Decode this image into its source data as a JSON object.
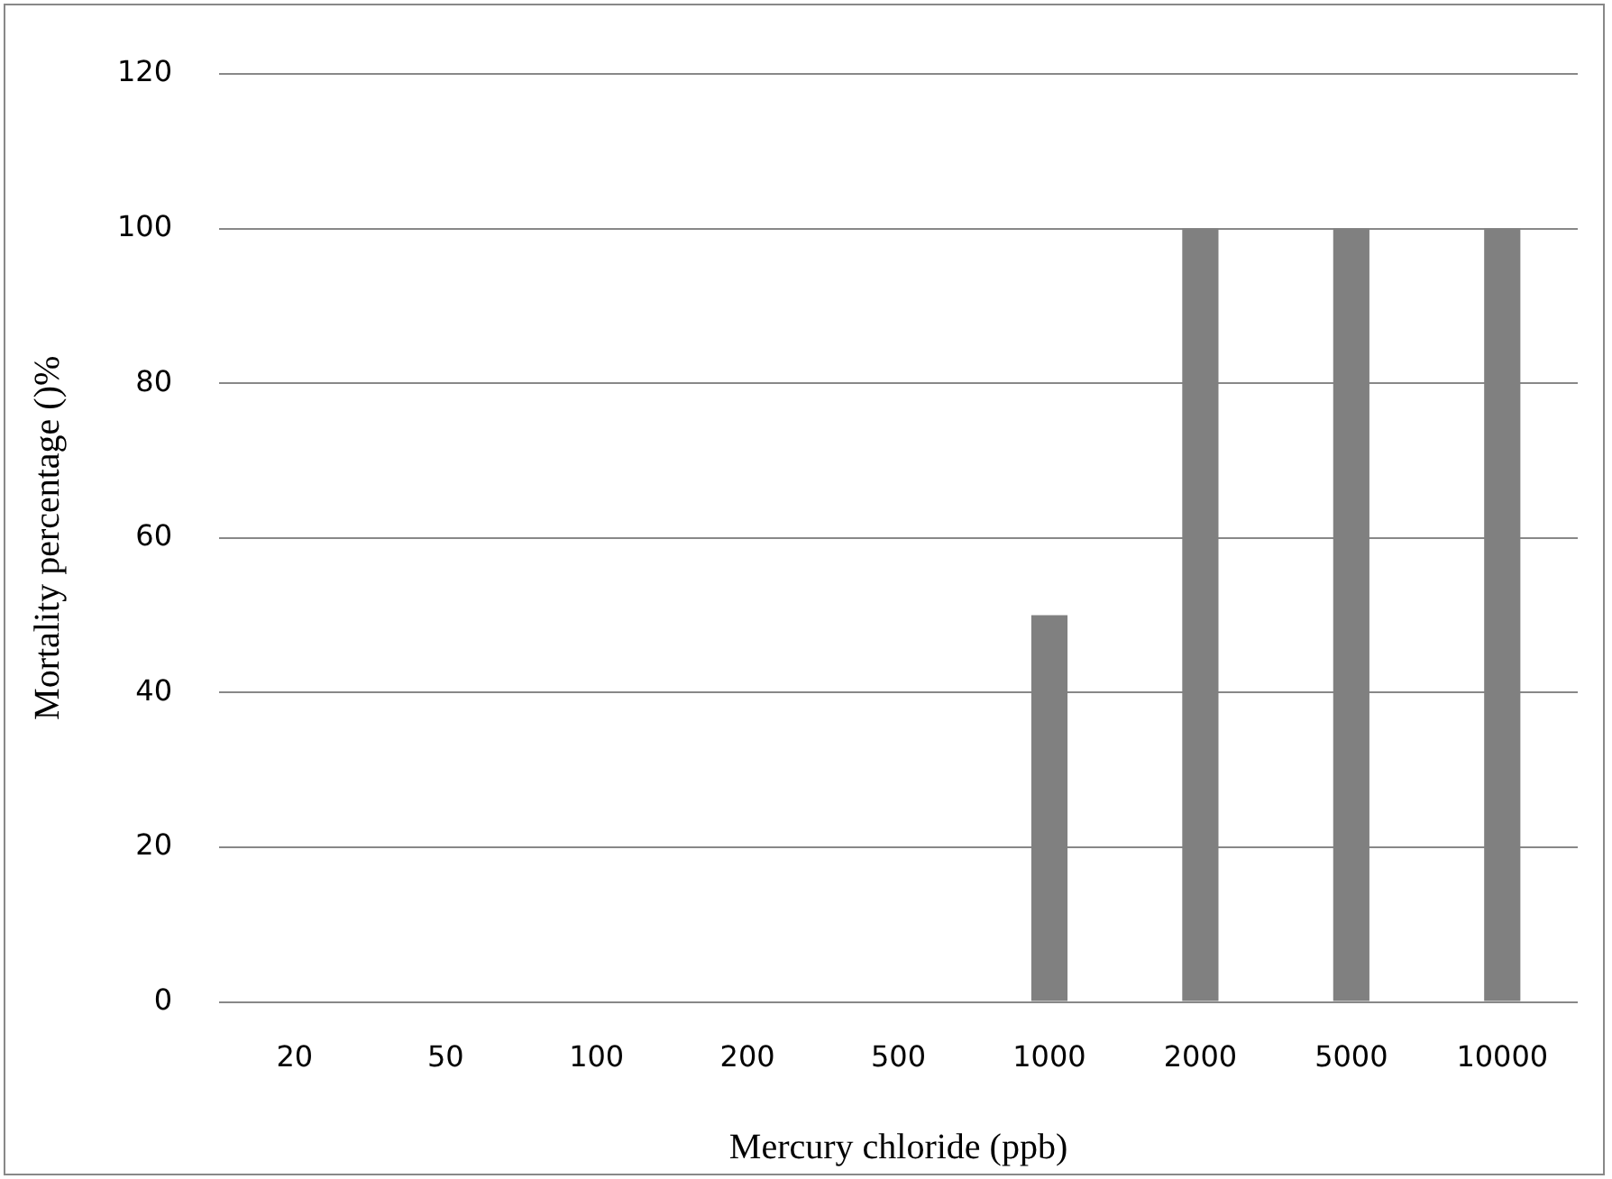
{
  "chart_data": {
    "type": "bar",
    "xlabel": "Mercury chloride (ppb)",
    "ylabel": "Mortality percentage ()%",
    "categories": [
      "20",
      "50",
      "100",
      "200",
      "500",
      "1000",
      "2000",
      "5000",
      "10000"
    ],
    "values": [
      0,
      0,
      0,
      0,
      0,
      50,
      100,
      100,
      100
    ],
    "color": "#808080",
    "ylim": [
      0,
      120
    ],
    "yticks": [
      0,
      20,
      40,
      60,
      80,
      100,
      120
    ],
    "grid": "y",
    "legend": false
  }
}
